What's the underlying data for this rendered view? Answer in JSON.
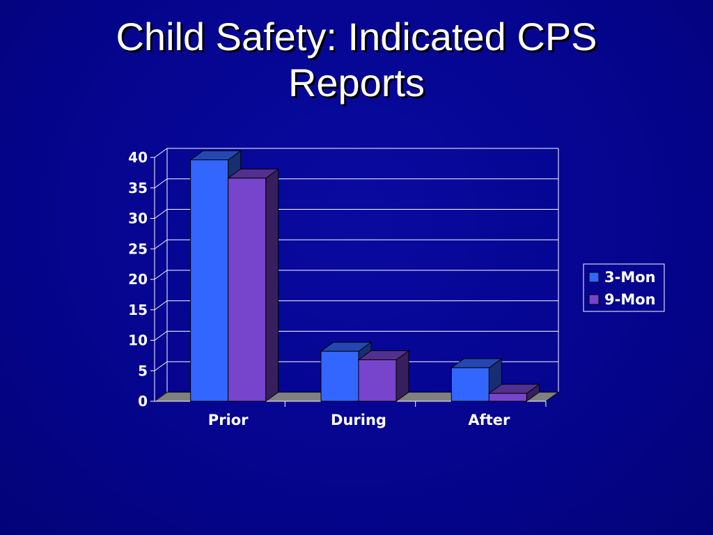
{
  "slide": {
    "title_line1": "Child Safety: Indicated CPS",
    "title_line2": "Reports"
  },
  "chart_data": {
    "type": "bar",
    "style": "3d-clustered-column",
    "categories": [
      "Prior",
      "During",
      "After"
    ],
    "series": [
      {
        "name": "3-Mon",
        "values": [
          39.6,
          8.2,
          5.5
        ],
        "color": "#3366ff"
      },
      {
        "name": "9-Mon",
        "values": [
          36.6,
          6.8,
          1.3
        ],
        "color": "#7744cc"
      }
    ],
    "yticks": [
      0,
      5,
      10,
      15,
      20,
      25,
      30,
      35,
      40
    ],
    "ylim": [
      0,
      40
    ],
    "grid": true,
    "legend_position": "right",
    "colors": {
      "background": "#05058f",
      "plot_area": "#05058f",
      "gridline": "#ffffff",
      "floor": "#808080",
      "text": "#ffffff"
    }
  }
}
